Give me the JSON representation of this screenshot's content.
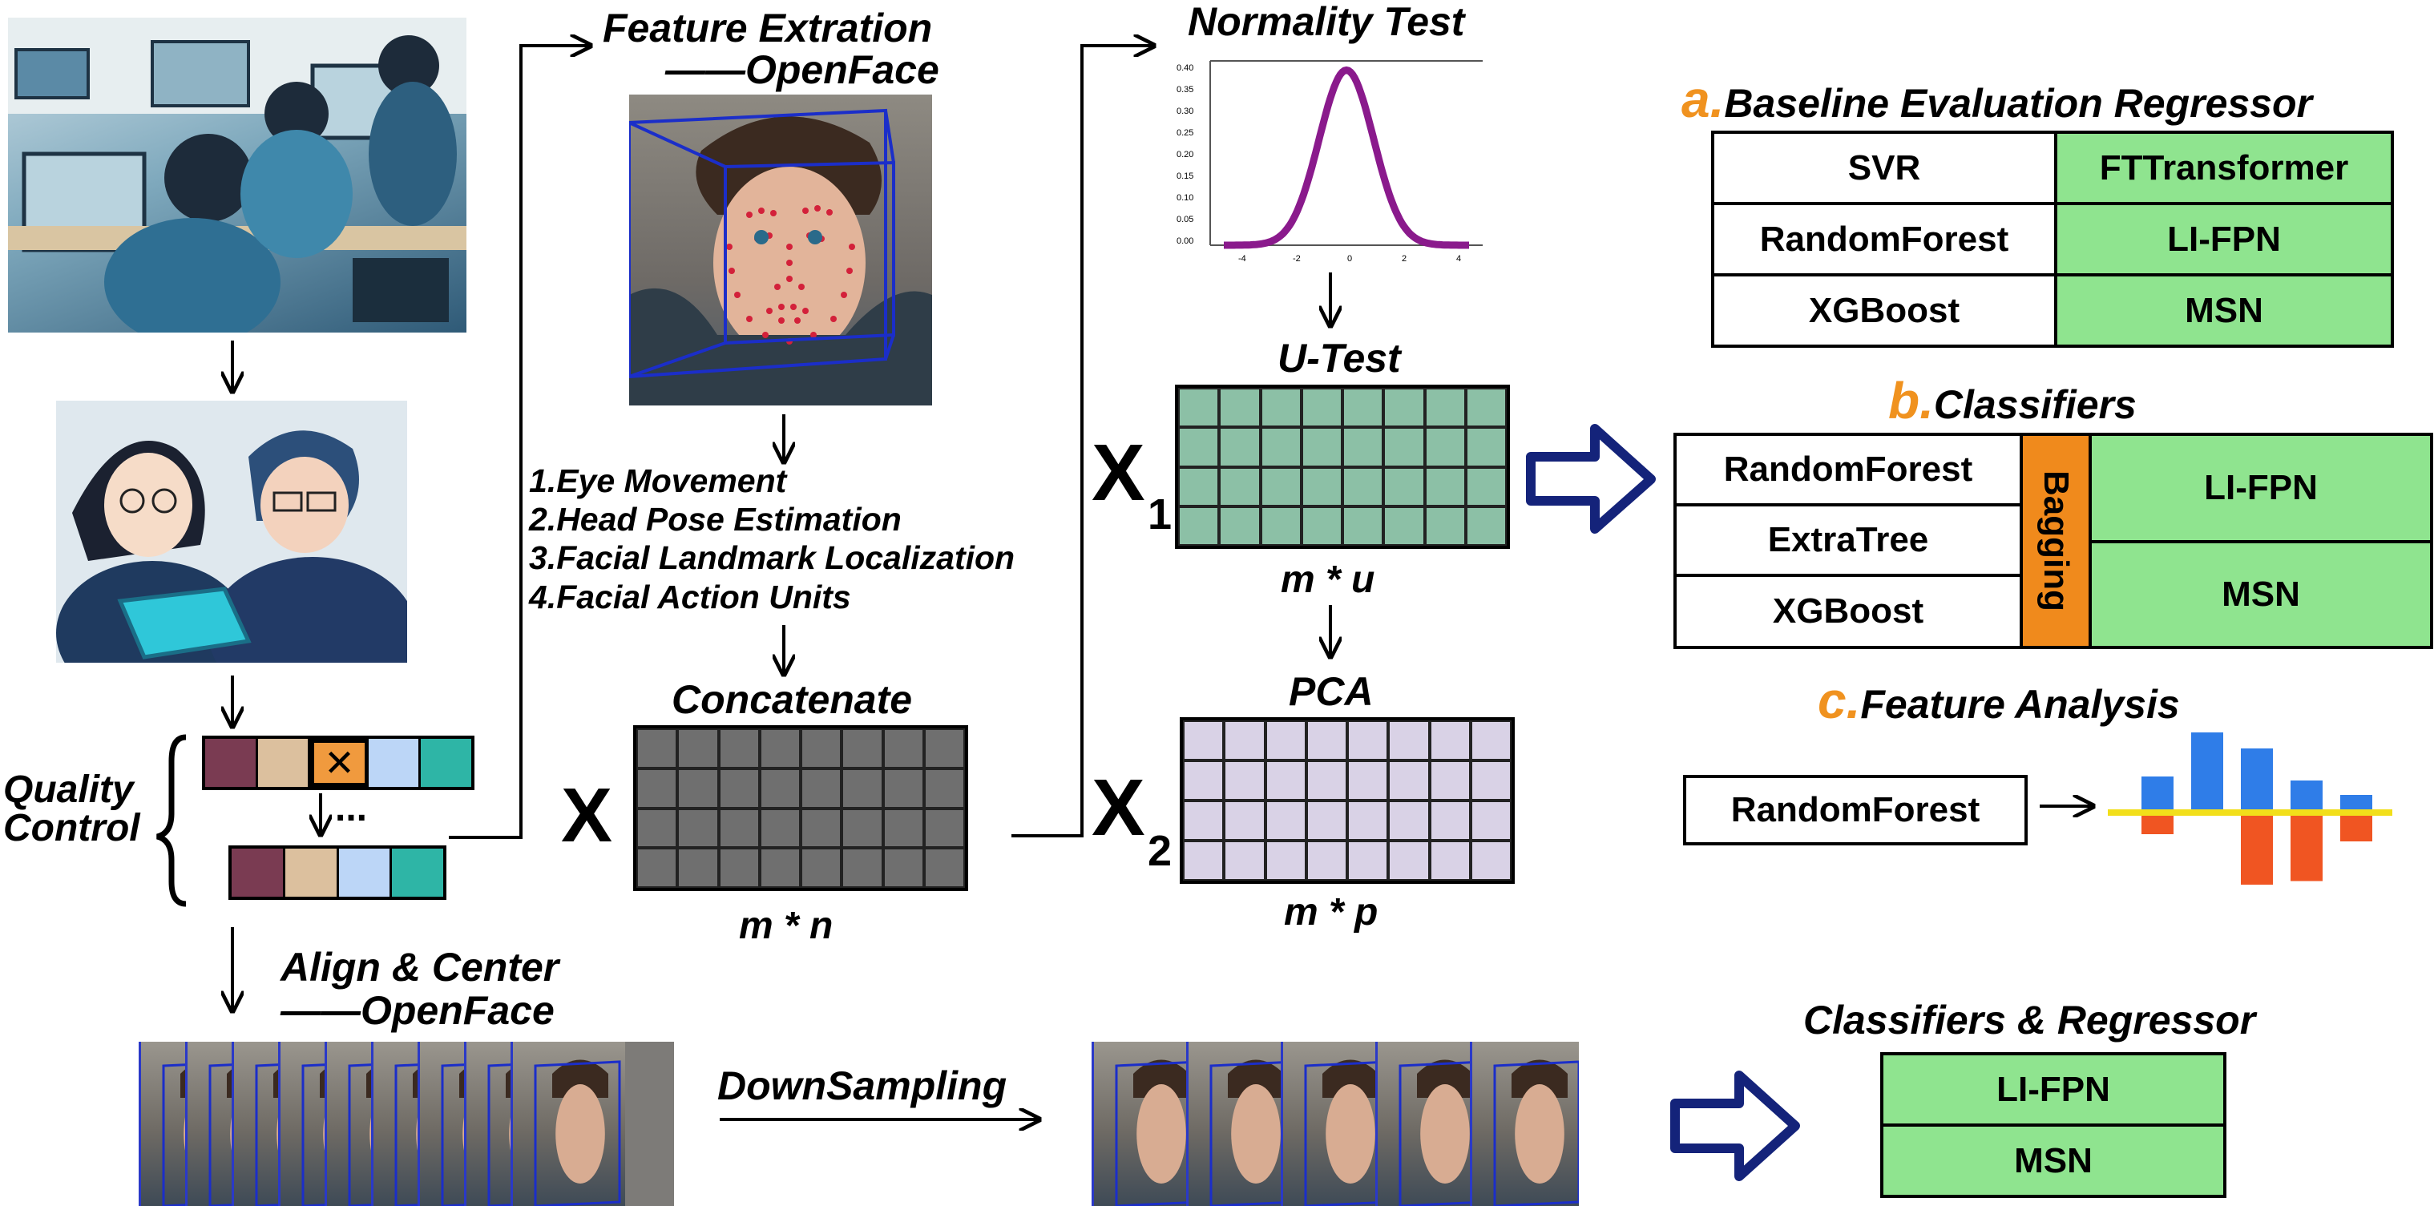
{
  "feature_extraction": {
    "title": "Feature Extration",
    "tool": "——OpenFace",
    "features": [
      "1.Eye Movement",
      "2.Head Pose Estimation",
      "3.Facial Landmark Localization",
      "4.Facial Action Units"
    ]
  },
  "concatenate": {
    "title": "Concatenate",
    "symbol": "X",
    "size": "m * n"
  },
  "normality": {
    "title": "Normality Test",
    "y_ticks": [
      "0.40",
      "0.35",
      "0.30",
      "0.25",
      "0.20",
      "0.15",
      "0.10",
      "0.05",
      "0.00"
    ],
    "x_ticks": [
      "-4",
      "-2",
      "0",
      "2",
      "4"
    ]
  },
  "utest": {
    "title": "U-Test",
    "symbol": "X",
    "subscript": "1",
    "size": "m * u"
  },
  "pca": {
    "title": "PCA",
    "symbol": "X",
    "subscript": "2",
    "size": "m * p"
  },
  "quality": {
    "title_line1": "Quality",
    "title_line2": "Control",
    "reject_mark": "✕",
    "ellipsis": "...",
    "colors": [
      "#7a3b52",
      "#dcc09e",
      "#f09a3e",
      "#bcd6f7",
      "#2eb5a6"
    ]
  },
  "align": {
    "title": "Align & Center",
    "tool": "——OpenFace"
  },
  "downsampling": {
    "label": "DownSampling"
  },
  "section_a": {
    "letter": "a.",
    "title": "Baseline Evaluation Regressor",
    "rows": [
      [
        "SVR",
        "FTTransformer"
      ],
      [
        "RandomForest",
        "LI-FPN"
      ],
      [
        "XGBoost",
        "MSN"
      ]
    ]
  },
  "section_b": {
    "letter": "b.",
    "title": "Classifiers",
    "left": [
      "RandomForest",
      "ExtraTree",
      "XGBoost"
    ],
    "middle": "Bagging",
    "right": [
      "LI-FPN",
      "MSN"
    ]
  },
  "section_c": {
    "letter": "c.",
    "title": "Feature Analysis",
    "model": "RandomForest",
    "bars_pos": [
      0.45,
      1.0,
      0.8,
      0.4,
      0.22
    ],
    "bars_neg": [
      0.3,
      0.0,
      1.0,
      0.95,
      0.4
    ]
  },
  "final": {
    "title": "Classifiers & Regressor",
    "rows": [
      "LI-FPN",
      "MSN"
    ]
  },
  "colors": {
    "accent_orange": "#f0921f",
    "table_green": "#8fe48f",
    "navy_arrow": "#14237a",
    "grid_gray": "#6f6f6f",
    "grid_teal": "#8cc0a6",
    "grid_lavender": "#d9d2e6",
    "bagging_orange": "#f08a1c",
    "curve_purple": "#8a1a8c",
    "bar_blue": "#2f7de8",
    "bar_red": "#f05522",
    "bar_axis_yellow": "#f2df1a"
  }
}
